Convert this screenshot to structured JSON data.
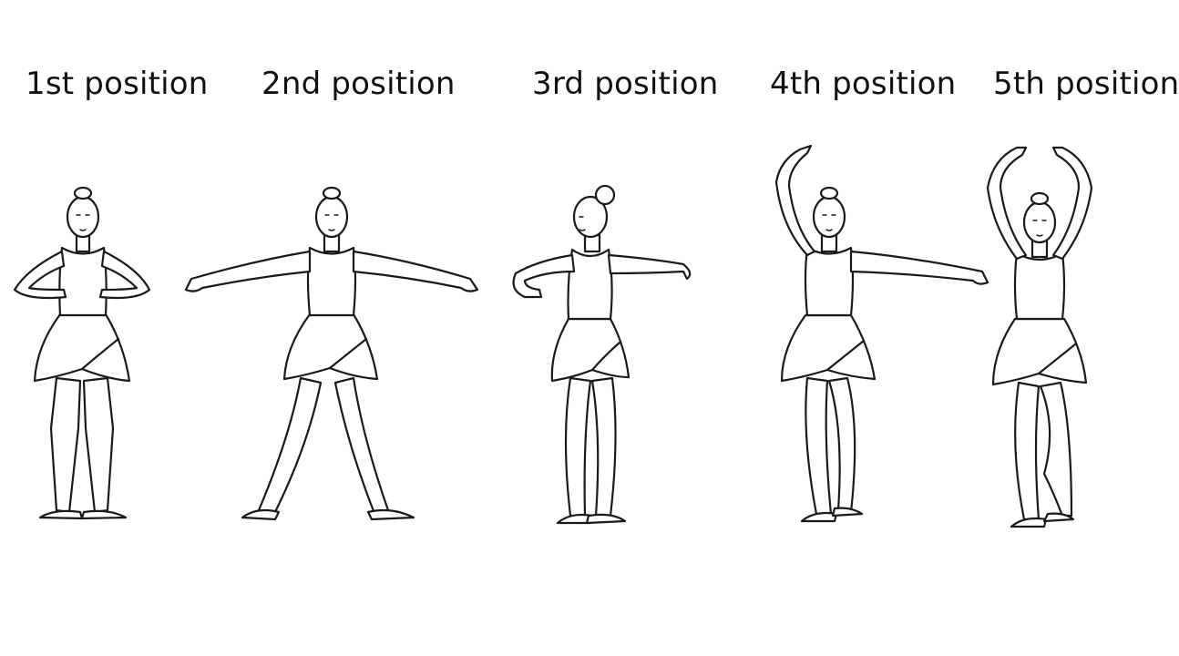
{
  "positions": [
    {
      "label": "1st position"
    },
    {
      "label": "2nd position"
    },
    {
      "label": "3rd position"
    },
    {
      "label": "4th position"
    },
    {
      "label": "5th position"
    }
  ],
  "colors": {
    "ink": "#1a1a1a",
    "background": "#ffffff"
  }
}
